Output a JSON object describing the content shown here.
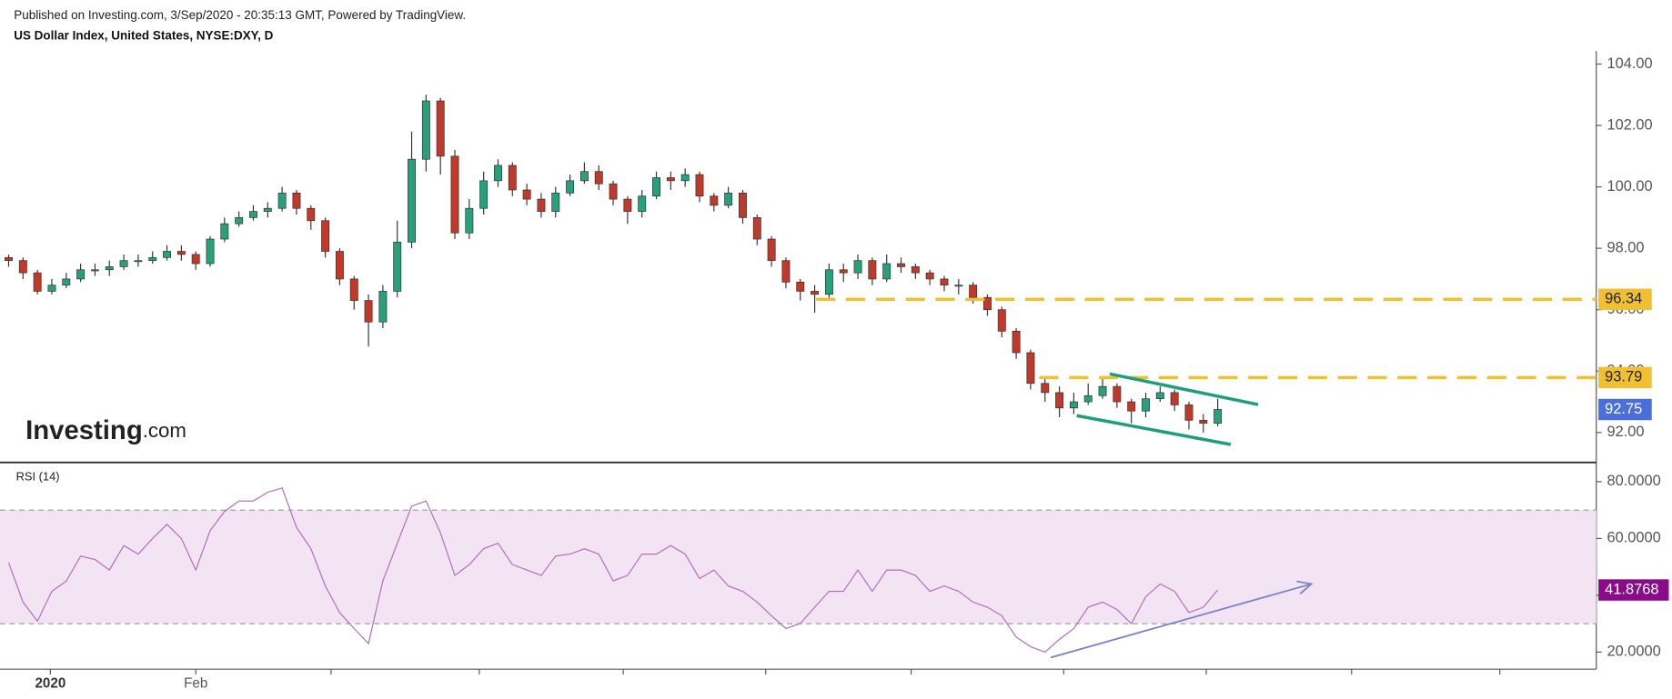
{
  "header": {
    "published": "Published on Investing.com, 3/Sep/2020 - 20:35:13 GMT, Powered by TradingView.",
    "logo_brand": "Investing",
    "logo_suffix": ".com"
  },
  "chart_data": [
    {
      "type": "candlestick",
      "title": "US Dollar Index, United States, NYSE:DXY, D",
      "xlim": [
        -0.6,
        110.3
      ],
      "ylim": [
        91.06,
        104.42
      ],
      "yticks": [
        {
          "value": 92,
          "label": "92.00"
        },
        {
          "value": 94,
          "label": "94.00"
        },
        {
          "value": 96,
          "label": "96.00"
        },
        {
          "value": 98,
          "label": "98.00"
        },
        {
          "value": 100,
          "label": "100.00"
        },
        {
          "value": 102,
          "label": "102.00"
        },
        {
          "value": 104,
          "label": "104.00"
        }
      ],
      "up_color": "#26a17b",
      "down_color": "#c0392b",
      "last_value_color": "#4a6fdc",
      "open": [
        97.7,
        97.6,
        97.2,
        96.6,
        96.8,
        97.0,
        97.3,
        97.3,
        97.4,
        97.6,
        97.6,
        97.7,
        97.9,
        97.8,
        97.5,
        98.3,
        98.8,
        99.0,
        99.2,
        99.3,
        99.8,
        99.3,
        98.9,
        97.9,
        97.0,
        96.3,
        95.6,
        96.6,
        98.2,
        100.9,
        102.8,
        101.0,
        98.5,
        99.3,
        100.2,
        100.7,
        99.9,
        99.6,
        99.2,
        99.8,
        100.2,
        100.5,
        100.1,
        99.6,
        99.2,
        99.7,
        100.3,
        100.2,
        100.4,
        99.7,
        99.4,
        99.8,
        99.0,
        98.3,
        97.6,
        96.9,
        96.6,
        96.5,
        97.3,
        97.2,
        97.6,
        97.0,
        97.5,
        97.4,
        97.2,
        97.0,
        96.8,
        96.8,
        96.4,
        96.0,
        95.3,
        94.6,
        93.6,
        93.3,
        92.8,
        93.0,
        93.2,
        93.5,
        93.0,
        92.7,
        93.1,
        93.3,
        92.9,
        92.4,
        92.3
      ],
      "high": [
        97.8,
        97.7,
        97.3,
        97.0,
        97.2,
        97.5,
        97.5,
        97.6,
        97.8,
        97.8,
        97.9,
        98.1,
        98.1,
        97.9,
        98.4,
        99.0,
        99.2,
        99.4,
        99.5,
        100.0,
        99.9,
        99.4,
        99.0,
        98.0,
        97.1,
        96.5,
        96.8,
        98.9,
        101.8,
        103.0,
        102.9,
        101.2,
        99.6,
        100.5,
        100.9,
        100.8,
        100.1,
        99.8,
        100.0,
        100.4,
        100.8,
        100.7,
        100.2,
        99.7,
        99.9,
        100.5,
        100.5,
        100.6,
        100.5,
        99.8,
        100.0,
        99.9,
        99.1,
        98.4,
        97.7,
        97.0,
        96.8,
        97.5,
        97.5,
        97.8,
        97.7,
        97.8,
        97.7,
        97.5,
        97.3,
        97.1,
        97.0,
        96.9,
        96.5,
        96.1,
        95.4,
        94.7,
        93.8,
        93.5,
        93.3,
        93.6,
        93.8,
        93.6,
        93.1,
        93.3,
        93.5,
        93.4,
        93.0,
        92.6,
        93.1
      ],
      "low": [
        97.4,
        97.0,
        96.5,
        96.5,
        96.7,
        96.9,
        97.1,
        97.1,
        97.3,
        97.4,
        97.5,
        97.6,
        97.6,
        97.3,
        97.4,
        98.2,
        98.7,
        98.9,
        99.0,
        99.2,
        99.1,
        98.6,
        97.7,
        96.8,
        96.0,
        94.8,
        95.4,
        96.4,
        98.0,
        100.5,
        100.4,
        98.3,
        98.3,
        99.1,
        100.0,
        99.7,
        99.4,
        99.0,
        99.0,
        99.7,
        100.1,
        99.9,
        99.4,
        98.8,
        99.0,
        99.6,
        99.9,
        100.0,
        99.5,
        99.2,
        99.3,
        98.8,
        98.1,
        97.4,
        96.7,
        96.3,
        95.9,
        96.3,
        96.9,
        97.0,
        96.8,
        96.9,
        97.2,
        97.0,
        96.8,
        96.6,
        96.5,
        96.2,
        95.8,
        95.1,
        94.4,
        93.4,
        93.0,
        92.5,
        92.6,
        92.9,
        93.1,
        92.8,
        92.3,
        92.5,
        93.0,
        92.7,
        92.1,
        92.0,
        92.2
      ],
      "close": [
        97.6,
        97.2,
        96.6,
        96.8,
        97.0,
        97.3,
        97.3,
        97.4,
        97.6,
        97.6,
        97.7,
        97.9,
        97.8,
        97.5,
        98.3,
        98.8,
        99.0,
        99.2,
        99.3,
        99.8,
        99.3,
        98.9,
        97.9,
        97.0,
        96.3,
        95.6,
        96.6,
        98.2,
        100.9,
        102.8,
        101.0,
        98.5,
        99.3,
        100.2,
        100.7,
        99.9,
        99.6,
        99.2,
        99.8,
        100.2,
        100.5,
        100.1,
        99.6,
        99.2,
        99.7,
        100.3,
        100.2,
        100.4,
        99.7,
        99.4,
        99.8,
        99.0,
        98.3,
        97.6,
        96.9,
        96.6,
        96.5,
        97.3,
        97.2,
        97.6,
        97.0,
        97.5,
        97.4,
        97.2,
        97.0,
        96.8,
        96.8,
        96.4,
        96.0,
        95.3,
        94.6,
        93.6,
        93.3,
        92.8,
        93.0,
        93.2,
        93.5,
        93.0,
        92.7,
        93.1,
        93.3,
        92.9,
        92.4,
        92.3,
        92.75
      ],
      "levels": [
        {
          "value": 96.34,
          "start": 56.1,
          "color": "#f0c030"
        },
        {
          "value": 93.79,
          "start": 71.6,
          "color": "#f0c030"
        }
      ],
      "trendlines": [
        {
          "color": "#1f9e7a",
          "points": [
            [
              76.5,
              93.91
            ],
            [
              86.8,
              92.91
            ]
          ]
        },
        {
          "color": "#1f9e7a",
          "points": [
            [
              74.2,
              92.55
            ],
            [
              84.9,
              91.61
            ]
          ]
        }
      ]
    },
    {
      "type": "line",
      "title": "RSI (14)",
      "color": "#b36bc0",
      "band_color": "#f2e4f2",
      "last_value_color": "#8b0a8b",
      "xlim": [
        -0.6,
        110.3
      ],
      "ylim": [
        14,
        86.4
      ],
      "yticks": [
        {
          "value": 20,
          "label": "20.0000"
        },
        {
          "value": 40,
          "label": "40.0000"
        },
        {
          "value": 60,
          "label": "60.0000"
        },
        {
          "value": 80,
          "label": "80.0000"
        }
      ],
      "band": [
        30,
        70
      ],
      "xticks": [
        {
          "value": 2.9,
          "label": "2020"
        },
        {
          "value": 13.0,
          "label": "Feb"
        },
        {
          "value": 22.4,
          "label": null
        },
        {
          "value": 32.7,
          "label": null
        },
        {
          "value": 42.7,
          "label": null
        },
        {
          "value": 52.6,
          "label": null
        },
        {
          "value": 62.7,
          "label": null
        },
        {
          "value": 73.3,
          "label": null
        },
        {
          "value": 83.2,
          "label": null
        },
        {
          "value": 93.3,
          "label": null
        },
        {
          "value": 103.6,
          "label": null
        }
      ],
      "values": [
        51.5,
        37.6,
        30.9,
        41.4,
        45,
        53.8,
        52.6,
        48.9,
        57.5,
        54.5,
        60,
        65,
        60,
        48.9,
        62.8,
        69.5,
        73.2,
        73.2,
        76.3,
        77.8,
        63.9,
        56.4,
        43.3,
        33.9,
        28.3,
        23,
        45.1,
        58.3,
        71.4,
        73.2,
        62,
        47,
        50.8,
        56.4,
        58.3,
        50.8,
        48.9,
        47,
        53.8,
        54.5,
        56.4,
        54.5,
        45.1,
        47,
        54.5,
        54.5,
        57.5,
        54.5,
        45.9,
        48.9,
        43.3,
        41.4,
        37.6,
        32.8,
        28.3,
        30.1,
        35.8,
        41.4,
        41.4,
        48.9,
        41.4,
        48.9,
        48.9,
        47,
        41.4,
        43.3,
        41.4,
        37.6,
        35.8,
        32.8,
        25.3,
        21.9,
        20,
        24.5,
        28.3,
        35.8,
        37.6,
        35,
        30,
        39.5,
        44,
        41.4,
        33.9,
        35.8,
        41.8768
      ],
      "trendlines": [
        {
          "color": "#7a80c8",
          "points": [
            [
              72.4,
              18.1
            ],
            [
              90.5,
              44.0
            ]
          ]
        }
      ]
    }
  ]
}
